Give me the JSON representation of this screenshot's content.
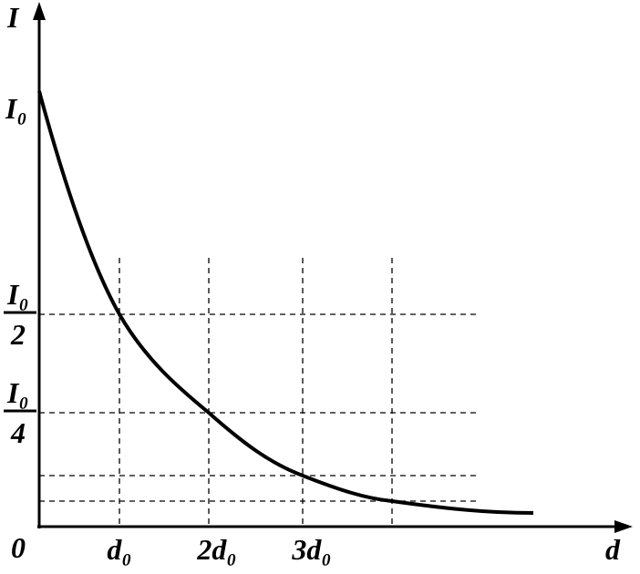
{
  "axes": {
    "y_label": "I",
    "x_label": "d",
    "origin": "0"
  },
  "y_labels": {
    "top": "I₀",
    "half": {
      "numerator": "I₀",
      "denominator": "2"
    },
    "quarter": {
      "numerator": "I₀",
      "denominator": "4"
    }
  },
  "x_labels": [
    "d₀",
    "2d₀",
    "3d₀"
  ]
}
